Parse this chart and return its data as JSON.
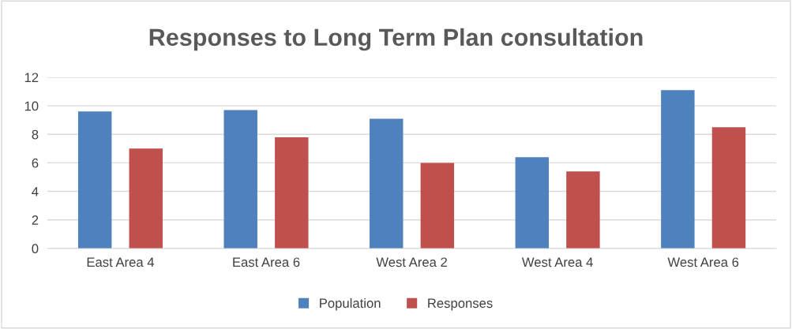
{
  "chart_data": {
    "type": "bar",
    "title": "Responses to Long Term Plan consultation",
    "categories": [
      "East Area 4",
      "East Area 6",
      "West Area 2",
      "West Area 4",
      "West Area 6"
    ],
    "series": [
      {
        "name": "Population",
        "color": "#4f81bd",
        "values": [
          9.6,
          9.7,
          9.1,
          6.4,
          11.1
        ]
      },
      {
        "name": "Responses",
        "color": "#c0504d",
        "values": [
          7.0,
          7.8,
          6.0,
          5.4,
          8.5
        ]
      }
    ],
    "ylim": [
      0,
      12
    ],
    "yticks": [
      0,
      2,
      4,
      6,
      8,
      10,
      12
    ],
    "grid": "y",
    "legend": "bottom"
  }
}
